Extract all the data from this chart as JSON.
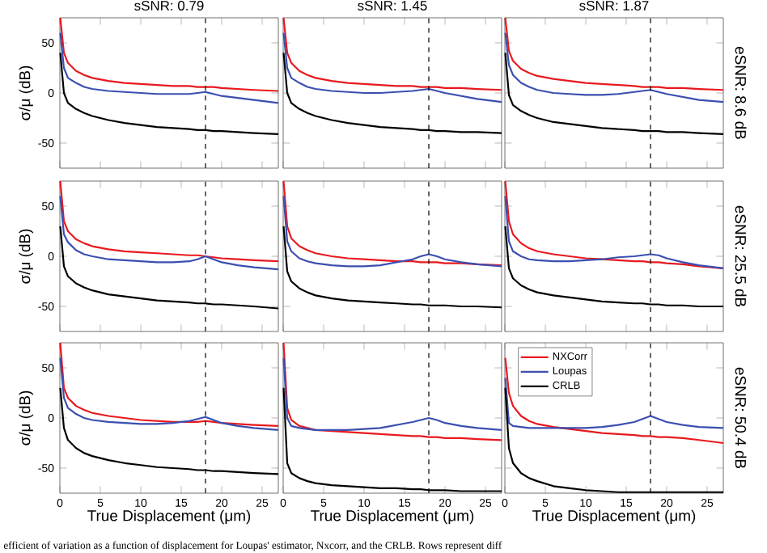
{
  "chart_data": [
    {
      "type": "line",
      "title": "sSNR: 0.79",
      "ylabel": "σ/μ (dB)",
      "tick_labels": "y",
      "xlim": [
        0,
        27
      ],
      "ylim": [
        -75,
        75
      ],
      "xticks": [
        0,
        5,
        10,
        15,
        20,
        25
      ],
      "yticks": [
        -50,
        0,
        50
      ],
      "ref_lines": [
        {
          "axis": "x",
          "value": 18,
          "line_style": "dashed"
        }
      ],
      "x": [
        0.05,
        0.5,
        1,
        2,
        3,
        4,
        6,
        8,
        10,
        12,
        14,
        16,
        17,
        18,
        19,
        20,
        22,
        24,
        27
      ],
      "series": [
        {
          "color": "#e8191e",
          "values": [
            75,
            40,
            30,
            22,
            18,
            15,
            12,
            10,
            9,
            8,
            7,
            7,
            6,
            6,
            6,
            5,
            4,
            3,
            2
          ]
        },
        {
          "color": "#3a4fb0",
          "values": [
            60,
            25,
            15,
            10,
            6,
            4,
            2,
            1,
            0,
            -1,
            -1,
            -1,
            0,
            1,
            -1,
            -3,
            -5,
            -7,
            -10
          ]
        },
        {
          "color": "#000000",
          "values": [
            40,
            0,
            -10,
            -16,
            -20,
            -23,
            -27,
            -30,
            -32,
            -34,
            -35,
            -36,
            -37,
            -37,
            -38,
            -38,
            -39,
            -40,
            -41
          ]
        }
      ]
    },
    {
      "type": "line",
      "title": "sSNR: 1.45",
      "tick_labels": false,
      "xlim": [
        0,
        27
      ],
      "ylim": [
        -75,
        75
      ],
      "xticks": [
        0,
        5,
        10,
        15,
        20,
        25
      ],
      "yticks": [
        -50,
        0,
        50
      ],
      "ref_lines": [
        {
          "axis": "x",
          "value": 18,
          "line_style": "dashed"
        }
      ],
      "x": [
        0.05,
        0.5,
        1,
        2,
        3,
        4,
        6,
        8,
        10,
        12,
        14,
        16,
        17,
        18,
        19,
        20,
        22,
        24,
        27
      ],
      "series": [
        {
          "color": "#e8191e",
          "values": [
            75,
            40,
            30,
            22,
            18,
            15,
            12,
            10,
            9,
            8,
            7,
            7,
            6,
            6,
            6,
            5,
            5,
            4,
            3
          ]
        },
        {
          "color": "#3a4fb0",
          "values": [
            60,
            25,
            15,
            10,
            6,
            4,
            2,
            1,
            0,
            0,
            1,
            2,
            3,
            4,
            2,
            0,
            -3,
            -6,
            -9
          ]
        },
        {
          "color": "#000000",
          "values": [
            40,
            0,
            -10,
            -16,
            -20,
            -23,
            -27,
            -30,
            -32,
            -34,
            -35,
            -36,
            -37,
            -37,
            -38,
            -38,
            -39,
            -39,
            -40
          ]
        }
      ]
    },
    {
      "type": "line",
      "title": "sSNR: 1.87",
      "tick_labels": false,
      "xlim": [
        0,
        27
      ],
      "ylim": [
        -75,
        75
      ],
      "xticks": [
        0,
        5,
        10,
        15,
        20,
        25
      ],
      "yticks": [
        -50,
        0,
        50
      ],
      "ref_lines": [
        {
          "axis": "x",
          "value": 18,
          "line_style": "dashed"
        }
      ],
      "annotations": [
        "eSNR: 8.6 dB"
      ],
      "x": [
        0.05,
        0.5,
        1,
        2,
        3,
        4,
        6,
        8,
        10,
        12,
        14,
        16,
        17,
        18,
        19,
        20,
        22,
        24,
        27
      ],
      "series": [
        {
          "color": "#e8191e",
          "values": [
            75,
            42,
            32,
            24,
            20,
            17,
            14,
            12,
            10,
            9,
            8,
            7,
            6,
            6,
            6,
            5,
            5,
            4,
            3
          ]
        },
        {
          "color": "#3a4fb0",
          "values": [
            60,
            28,
            18,
            10,
            6,
            3,
            0,
            -1,
            -2,
            -2,
            -1,
            1,
            2,
            3,
            1,
            -1,
            -4,
            -7,
            -9
          ]
        },
        {
          "color": "#000000",
          "values": [
            40,
            -2,
            -12,
            -18,
            -22,
            -25,
            -29,
            -31,
            -33,
            -35,
            -36,
            -37,
            -38,
            -38,
            -38,
            -39,
            -39,
            -40,
            -41
          ]
        }
      ]
    },
    {
      "type": "line",
      "ylabel": "σ/μ (dB)",
      "tick_labels": "y",
      "xlim": [
        0,
        27
      ],
      "ylim": [
        -75,
        75
      ],
      "xticks": [
        0,
        5,
        10,
        15,
        20,
        25
      ],
      "yticks": [
        -50,
        0,
        50
      ],
      "ref_lines": [
        {
          "axis": "x",
          "value": 18,
          "line_style": "dashed"
        }
      ],
      "x": [
        0.05,
        0.5,
        1,
        2,
        3,
        4,
        6,
        8,
        10,
        12,
        14,
        16,
        17,
        18,
        19,
        20,
        22,
        24,
        27
      ],
      "series": [
        {
          "color": "#e8191e",
          "values": [
            75,
            35,
            25,
            17,
            13,
            10,
            7,
            5,
            4,
            3,
            2,
            1,
            1,
            0,
            -1,
            -2,
            -3,
            -4,
            -5
          ]
        },
        {
          "color": "#3a4fb0",
          "values": [
            60,
            22,
            14,
            6,
            2,
            0,
            -3,
            -4,
            -5,
            -6,
            -6,
            -5,
            -3,
            0,
            -3,
            -6,
            -9,
            -11,
            -13
          ]
        },
        {
          "color": "#000000",
          "values": [
            30,
            -10,
            -20,
            -27,
            -31,
            -34,
            -38,
            -40,
            -42,
            -44,
            -45,
            -46,
            -47,
            -47,
            -48,
            -48,
            -49,
            -50,
            -52
          ]
        }
      ]
    },
    {
      "type": "line",
      "tick_labels": false,
      "xlim": [
        0,
        27
      ],
      "ylim": [
        -75,
        75
      ],
      "xticks": [
        0,
        5,
        10,
        15,
        20,
        25
      ],
      "yticks": [
        -50,
        0,
        50
      ],
      "ref_lines": [
        {
          "axis": "x",
          "value": 18,
          "line_style": "dashed"
        }
      ],
      "x": [
        0.05,
        0.5,
        1,
        2,
        3,
        4,
        6,
        8,
        10,
        12,
        14,
        16,
        17,
        18,
        19,
        20,
        22,
        24,
        27
      ],
      "series": [
        {
          "color": "#e8191e",
          "values": [
            75,
            30,
            18,
            10,
            6,
            3,
            0,
            -2,
            -3,
            -4,
            -5,
            -5,
            -6,
            -6,
            -6,
            -7,
            -7,
            -8,
            -9
          ]
        },
        {
          "color": "#3a4fb0",
          "values": [
            60,
            15,
            5,
            -2,
            -5,
            -7,
            -9,
            -10,
            -10,
            -9,
            -6,
            -3,
            0,
            2,
            0,
            -3,
            -6,
            -8,
            -10
          ]
        },
        {
          "color": "#000000",
          "values": [
            30,
            -15,
            -25,
            -32,
            -36,
            -39,
            -42,
            -44,
            -45,
            -46,
            -47,
            -48,
            -48,
            -49,
            -49,
            -49,
            -50,
            -50,
            -51
          ]
        }
      ]
    },
    {
      "type": "line",
      "tick_labels": false,
      "xlim": [
        0,
        27
      ],
      "ylim": [
        -75,
        75
      ],
      "xticks": [
        0,
        5,
        10,
        15,
        20,
        25
      ],
      "yticks": [
        -50,
        0,
        50
      ],
      "ref_lines": [
        {
          "axis": "x",
          "value": 18,
          "line_style": "dashed"
        }
      ],
      "annotations": [
        "eSNR: 25.5 dB"
      ],
      "x": [
        0.05,
        0.5,
        1,
        2,
        3,
        4,
        6,
        8,
        10,
        12,
        14,
        16,
        17,
        18,
        19,
        20,
        22,
        24,
        27
      ],
      "series": [
        {
          "color": "#e8191e",
          "values": [
            75,
            35,
            22,
            13,
            8,
            5,
            2,
            0,
            -2,
            -3,
            -4,
            -5,
            -5,
            -6,
            -6,
            -7,
            -8,
            -10,
            -12
          ]
        },
        {
          "color": "#3a4fb0",
          "values": [
            60,
            15,
            5,
            0,
            -3,
            -4,
            -5,
            -5,
            -4,
            -3,
            -1,
            0,
            1,
            2,
            1,
            -2,
            -6,
            -9,
            -12
          ]
        },
        {
          "color": "#000000",
          "values": [
            30,
            -12,
            -22,
            -29,
            -33,
            -36,
            -39,
            -41,
            -43,
            -45,
            -46,
            -47,
            -47,
            -48,
            -48,
            -49,
            -49,
            -50,
            -50
          ]
        }
      ]
    },
    {
      "type": "line",
      "xlabel": "True Displacement (μm)",
      "ylabel": "σ/μ (dB)",
      "xlim": [
        0,
        27
      ],
      "ylim": [
        -75,
        75
      ],
      "xticks": [
        0,
        5,
        10,
        15,
        20,
        25
      ],
      "yticks": [
        -50,
        0,
        50
      ],
      "ref_lines": [
        {
          "axis": "x",
          "value": 18,
          "line_style": "dashed"
        }
      ],
      "annotations": [
        "efficient of variation as a function of displacement for Loupas' estimator, Nxcorr, and the CRLB. Rows represent diff"
      ],
      "x": [
        0.05,
        0.5,
        1,
        2,
        3,
        4,
        6,
        8,
        10,
        12,
        14,
        16,
        17,
        18,
        19,
        20,
        22,
        24,
        27
      ],
      "series": [
        {
          "color": "#e8191e",
          "values": [
            75,
            30,
            20,
            12,
            8,
            5,
            2,
            0,
            -2,
            -3,
            -4,
            -4,
            -4,
            -3,
            -4,
            -5,
            -6,
            -7,
            -8
          ]
        },
        {
          "color": "#3a4fb0",
          "values": [
            60,
            20,
            10,
            4,
            0,
            -2,
            -4,
            -5,
            -6,
            -6,
            -5,
            -3,
            -1,
            1,
            -2,
            -5,
            -8,
            -10,
            -12
          ]
        },
        {
          "color": "#000000",
          "values": [
            30,
            -10,
            -22,
            -30,
            -35,
            -38,
            -42,
            -45,
            -47,
            -49,
            -50,
            -51,
            -52,
            -52,
            -53,
            -53,
            -54,
            -55,
            -56
          ]
        }
      ]
    },
    {
      "type": "line",
      "xlabel": "True Displacement (μm)",
      "tick_labels": "x",
      "xlim": [
        0,
        27
      ],
      "ylim": [
        -75,
        75
      ],
      "xticks": [
        0,
        5,
        10,
        15,
        20,
        25
      ],
      "yticks": [
        -50,
        0,
        50
      ],
      "ref_lines": [
        {
          "axis": "x",
          "value": 18,
          "line_style": "dashed"
        }
      ],
      "x": [
        0.05,
        0.5,
        1,
        2,
        3,
        4,
        6,
        8,
        10,
        12,
        14,
        16,
        17,
        18,
        19,
        20,
        22,
        24,
        27
      ],
      "series": [
        {
          "color": "#e8191e",
          "values": [
            75,
            10,
            -2,
            -8,
            -10,
            -12,
            -13,
            -14,
            -15,
            -16,
            -17,
            -18,
            -18,
            -19,
            -19,
            -20,
            -20,
            -21,
            -22
          ]
        },
        {
          "color": "#3a4fb0",
          "values": [
            60,
            0,
            -8,
            -10,
            -11,
            -12,
            -12,
            -12,
            -11,
            -10,
            -7,
            -4,
            -2,
            0,
            -2,
            -5,
            -8,
            -10,
            -12
          ]
        },
        {
          "color": "#000000",
          "values": [
            30,
            -45,
            -55,
            -60,
            -63,
            -65,
            -67,
            -68,
            -69,
            -70,
            -70,
            -71,
            -71,
            -72,
            -72,
            -72,
            -73,
            -73,
            -73
          ]
        }
      ]
    },
    {
      "type": "line",
      "xlabel": "True Displacement (μm)",
      "tick_labels": "x",
      "legend": "top left",
      "xlim": [
        0,
        27
      ],
      "ylim": [
        -75,
        75
      ],
      "xticks": [
        0,
        5,
        10,
        15,
        20,
        25
      ],
      "yticks": [
        -50,
        0,
        50
      ],
      "ref_lines": [
        {
          "axis": "x",
          "value": 18,
          "line_style": "dashed"
        }
      ],
      "annotations": [
        "eSNR: 50.4 dB"
      ],
      "x": [
        0.05,
        0.5,
        1,
        2,
        3,
        4,
        6,
        8,
        10,
        12,
        14,
        16,
        17,
        18,
        19,
        20,
        22,
        24,
        27
      ],
      "series": [
        {
          "name": "NXCorr",
          "color": "#e8191e",
          "values": [
            60,
            25,
            12,
            2,
            -3,
            -6,
            -9,
            -11,
            -13,
            -15,
            -16,
            -17,
            -18,
            -18,
            -19,
            -19,
            -20,
            -22,
            -25
          ]
        },
        {
          "name": "Loupas",
          "color": "#3a4fb0",
          "values": [
            40,
            -5,
            -8,
            -9,
            -10,
            -10,
            -10,
            -10,
            -10,
            -9,
            -7,
            -4,
            -1,
            2,
            -1,
            -4,
            -7,
            -9,
            -10
          ]
        },
        {
          "name": "CRLB",
          "color": "#000000",
          "values": [
            30,
            -30,
            -45,
            -55,
            -60,
            -63,
            -68,
            -70,
            -72,
            -73,
            -74,
            -74,
            -74,
            -74,
            -74,
            -74,
            -74,
            -74,
            -74
          ]
        }
      ]
    }
  ]
}
